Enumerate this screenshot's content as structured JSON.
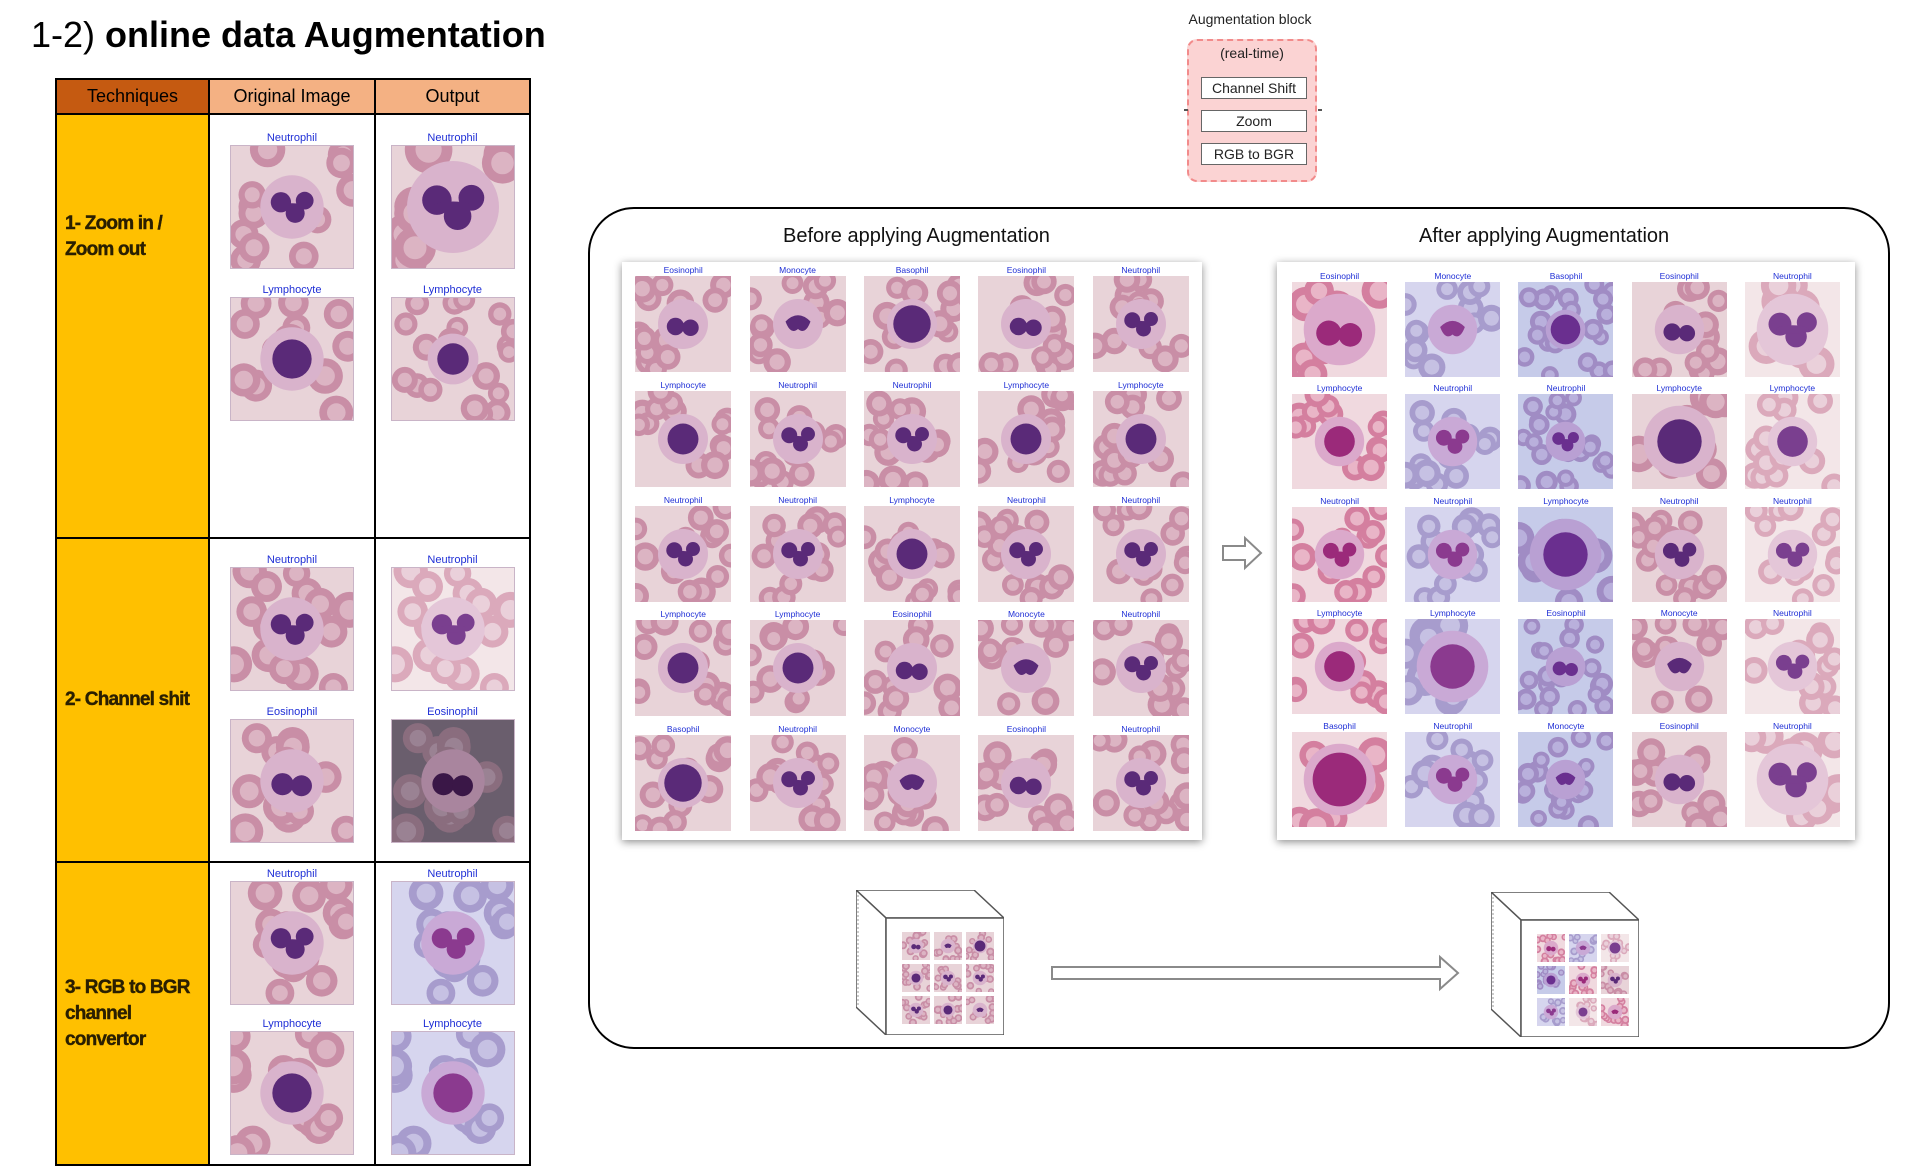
{
  "title": {
    "prefix": "1-2) ",
    "bold": "online data Augmentation"
  },
  "table": {
    "headers": [
      "Techniques",
      "Original Image",
      "Output"
    ],
    "rows": [
      {
        "technique_lines": [
          "1- Zoom in /",
          "Zoom out"
        ],
        "pairs": [
          {
            "orig": "Neutrophil",
            "out": "Neutrophil"
          },
          {
            "orig": "Lymphocyte",
            "out": "Lymphocyte"
          }
        ]
      },
      {
        "technique_lines": [
          "2- Channel shit"
        ],
        "pairs": [
          {
            "orig": "Neutrophil",
            "out": "Neutrophil"
          },
          {
            "orig": "Eosinophil",
            "out": "Eosinophil"
          }
        ]
      },
      {
        "technique_lines": [
          "3- RGB to BGR",
          "channel",
          "convertor"
        ],
        "pairs": [
          {
            "orig": "Neutrophil",
            "out": "Neutrophil"
          },
          {
            "orig": "Lymphocyte",
            "out": "Lymphocyte"
          }
        ]
      }
    ]
  },
  "augmentation_block": {
    "title": "Augmentation block",
    "subtitle": "(real-time)",
    "buttons": [
      "Channel Shift",
      "Zoom",
      "RGB to BGR"
    ]
  },
  "panel": {
    "before_title": "Before applying Augmentation",
    "after_title": "After applying Augmentation",
    "grid_labels": [
      "Eosinophil",
      "Monocyte",
      "Basophil",
      "Eosinophil",
      "Neutrophil",
      "Lymphocyte",
      "Neutrophil",
      "Neutrophil",
      "Lymphocyte",
      "Lymphocyte",
      "Neutrophil",
      "Neutrophil",
      "Lymphocyte",
      "Neutrophil",
      "Neutrophil",
      "Lymphocyte",
      "Lymphocyte",
      "Eosinophil",
      "Monocyte",
      "Neutrophil",
      "Basophil",
      "Neutrophil",
      "Monocyte",
      "Eosinophil",
      "Neutrophil"
    ]
  },
  "colors": {
    "table_header_tech": "#c55a11",
    "table_header": "#f4b183",
    "technique_cell": "#ffc000",
    "cell_label": "#1f2fd6",
    "aug_block_fill": "#fbd3d3",
    "aug_block_border": "#f28b8b"
  }
}
